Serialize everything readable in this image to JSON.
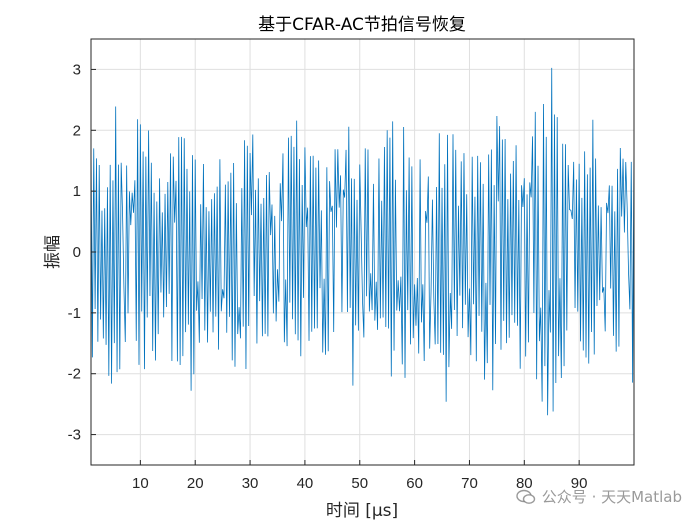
{
  "chart_data": {
    "type": "line",
    "title": "基于CFAR-AC节拍信号恢复",
    "xlabel": "时间 [μs]",
    "ylabel": "振幅",
    "xlim": [
      1,
      100
    ],
    "ylim": [
      -3.5,
      3.5
    ],
    "xticks": [
      10,
      20,
      30,
      40,
      50,
      60,
      70,
      80,
      90
    ],
    "yticks": [
      -3,
      -2,
      -1,
      0,
      1,
      2,
      3
    ],
    "grid": true,
    "series_color": "#0072BD",
    "series": [
      {
        "x_range": [
          1,
          100
        ],
        "carrier_period": 0.5,
        "envelope": [
          [
            1,
            2.4
          ],
          [
            3,
            1.4
          ],
          [
            5,
            2.6
          ],
          [
            8,
            1.6
          ],
          [
            10,
            2.8
          ],
          [
            12,
            1.9
          ],
          [
            14,
            1.6
          ],
          [
            17,
            2.4
          ],
          [
            20,
            2.3
          ],
          [
            22,
            1.5
          ],
          [
            24,
            2.0
          ],
          [
            26,
            1.6
          ],
          [
            28,
            2.3
          ],
          [
            30,
            2.2
          ],
          [
            32,
            1.6
          ],
          [
            35,
            1.5
          ],
          [
            37,
            2.2
          ],
          [
            39,
            2.2
          ],
          [
            41,
            1.6
          ],
          [
            43,
            1.6
          ],
          [
            46,
            2.3
          ],
          [
            48,
            2.6
          ],
          [
            50,
            2.3
          ],
          [
            52,
            1.6
          ],
          [
            54,
            1.9
          ],
          [
            56,
            2.2
          ],
          [
            58,
            2.2
          ],
          [
            60,
            1.6
          ],
          [
            62,
            1.9
          ],
          [
            64,
            2.7
          ],
          [
            66,
            2.6
          ],
          [
            68,
            1.7
          ],
          [
            70,
            1.8
          ],
          [
            72,
            2.0
          ],
          [
            74,
            2.5
          ],
          [
            76,
            2.0
          ],
          [
            78,
            1.6
          ],
          [
            80,
            2.3
          ],
          [
            82,
            2.4
          ],
          [
            84,
            2.7
          ],
          [
            85,
            3.5
          ],
          [
            86,
            2.3
          ],
          [
            88,
            1.8
          ],
          [
            90,
            2.4
          ],
          [
            92,
            2.5
          ],
          [
            94,
            1.9
          ],
          [
            96,
            1.6
          ],
          [
            98,
            2.2
          ],
          [
            100,
            2.4
          ]
        ]
      }
    ]
  },
  "watermark": {
    "text": "公众号 · 天天Matlab"
  }
}
